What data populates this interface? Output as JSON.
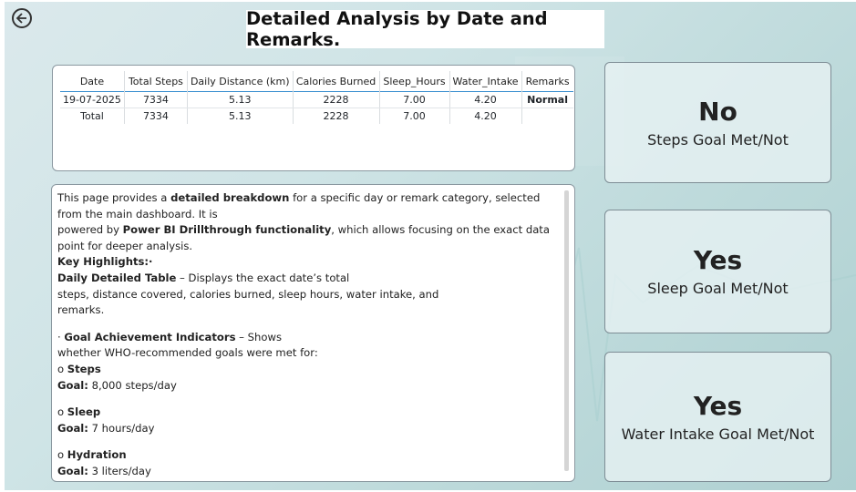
{
  "page": {
    "title": "Detailed Analysis by Date and Remarks.",
    "back_icon": "back-arrow-circle-icon"
  },
  "table": {
    "columns": [
      "Date",
      "Total Steps",
      "Daily Distance (km)",
      "Calories Burned",
      "Sleep_Hours",
      "Water_Intake",
      "Remarks"
    ],
    "rows": [
      {
        "date": "19-07-2025",
        "steps": "7334",
        "distance": "5.13",
        "calories": "2228",
        "sleep": "7.00",
        "water": "4.20",
        "remarks": "Normal"
      }
    ],
    "total": {
      "label": "Total",
      "steps": "7334",
      "distance": "5.13",
      "calories": "2228",
      "sleep": "7.00",
      "water": "4.20",
      "remarks": ""
    }
  },
  "description": {
    "l1_pre": "This page provides a ",
    "l1_bold": "detailed breakdown",
    "l1_post": " for a specific day or remark category, selected from the main dashboard. It is",
    "l2_pre": "powered by ",
    "l2_bold": "Power BI Drillthrough functionality",
    "l2_post": ", which allows focusing on the exact data point for deeper analysis.",
    "key_highlights": "Key Highlights:·",
    "t1_bold": "Daily Detailed Table",
    "t1_text": " – Displays the exact date’s total",
    "t1_line2": "steps, distance covered, calories burned, sleep hours, water intake, and",
    "t1_line3": "remarks.",
    "g_bullet": "·  ",
    "g_bold": "Goal Achievement Indicators",
    "g_text": " – Shows",
    "g_line2": "whether WHO-recommended goals were met for:",
    "steps_head": "Steps",
    "steps_goal_label": "Goal:",
    "steps_goal": " 8,000 steps/day",
    "sleep_head": "Sleep",
    "sleep_goal_label": "Goal:",
    "sleep_goal": " 7 hours/day",
    "hyd_head": "Hydration",
    "hyd_goal_label": "Goal:",
    "hyd_goal": " 3 liters/day",
    "bullet_o": "o  "
  },
  "kpis": {
    "steps": {
      "value": "No",
      "label": "Steps Goal Met/Not"
    },
    "sleep": {
      "value": "Yes",
      "label": "Sleep Goal Met/Not"
    },
    "water": {
      "value": "Yes",
      "label": "Water Intake Goal Met/Not"
    }
  },
  "colors": {
    "accent": "#3a8fd0",
    "background": "#c7e0e2",
    "card": "#ffffff"
  }
}
